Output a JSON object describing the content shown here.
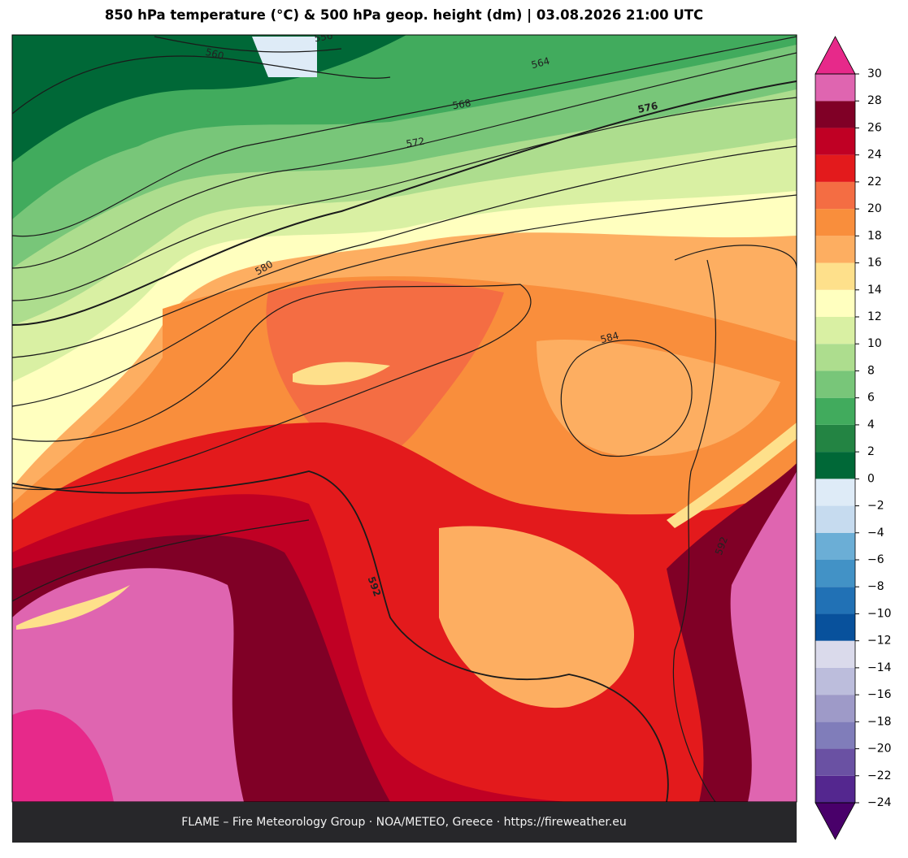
{
  "title": "850 hPa temperature (°C) & 500 hPa geop. height (dm)  |  03.08.2026 21:00 UTC",
  "footer": "FLAME – Fire Meteorology Group · NOA/METEO, Greece · https://fireweather.eu",
  "contour_labels": [
    556,
    560,
    564,
    568,
    572,
    576,
    580,
    584,
    592,
    592
  ],
  "colorbar": {
    "ticks": [
      {
        "value": -24,
        "label": "−24"
      },
      {
        "value": -22,
        "label": "−22"
      },
      {
        "value": -20,
        "label": "−20"
      },
      {
        "value": -18,
        "label": "−18"
      },
      {
        "value": -16,
        "label": "−16"
      },
      {
        "value": -14,
        "label": "−14"
      },
      {
        "value": -12,
        "label": "−12"
      },
      {
        "value": -10,
        "label": "−10"
      },
      {
        "value": -8,
        "label": "−8"
      },
      {
        "value": -6,
        "label": "−6"
      },
      {
        "value": -4,
        "label": "−4"
      },
      {
        "value": -2,
        "label": "−2"
      },
      0,
      2,
      4,
      6,
      8,
      10,
      12,
      14,
      16,
      18,
      20,
      22,
      24,
      26,
      28,
      30
    ],
    "colors": [
      "#54278f",
      "#6a51a3",
      "#807dba",
      "#9e9ac8",
      "#bcbddc",
      "#dadaeb",
      "#08519c",
      "#2171b5",
      "#4292c6",
      "#6baed6",
      "#c6dbef",
      "#deebf7",
      "#006837",
      "#238443",
      "#41ab5d",
      "#78c679",
      "#addd8e",
      "#d9f0a3",
      "#ffffbf",
      "#fee08b",
      "#fdae61",
      "#f98e3c",
      "#f46d43",
      "#e31a1c",
      "#c00024",
      "#800026",
      "#df65b0"
    ],
    "under": "#49006a",
    "over": "#e7298a"
  }
}
